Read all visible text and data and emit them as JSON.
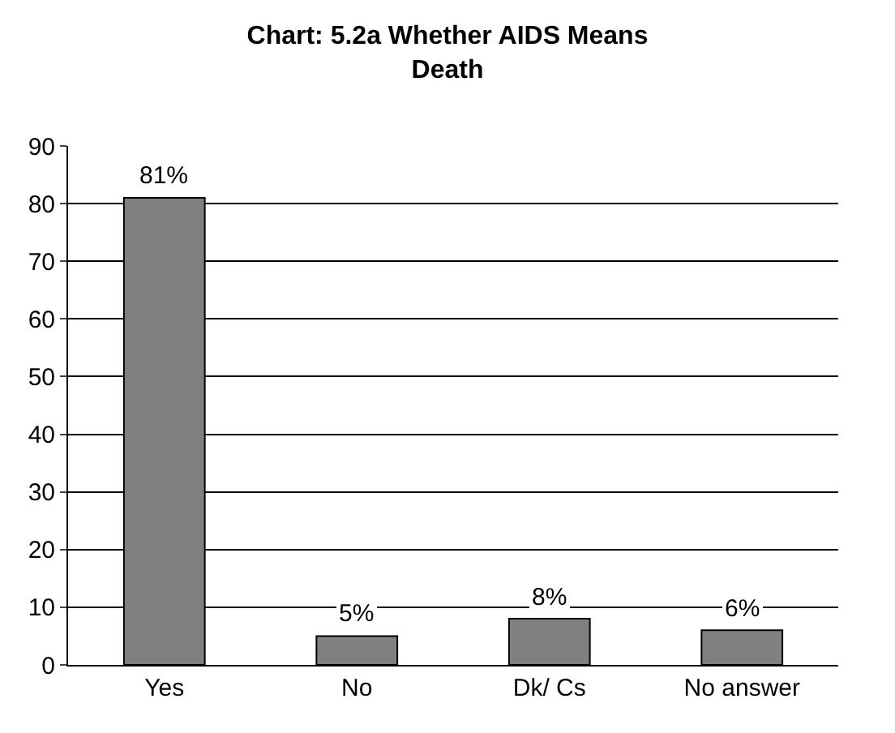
{
  "chart_data": {
    "type": "bar",
    "title": "Chart: 5.2a Whether AIDS Means Death",
    "categories": [
      "Yes",
      "No",
      "Dk/ Cs",
      "No answer"
    ],
    "values": [
      81,
      5,
      8,
      6
    ],
    "value_labels": [
      "81%",
      "5%",
      "8%",
      "6%"
    ],
    "color": "#808080",
    "ylim": [
      0,
      90
    ],
    "yticks": [
      0,
      10,
      20,
      30,
      40,
      50,
      60,
      70,
      80,
      90
    ],
    "grid": "y",
    "legend": false
  }
}
